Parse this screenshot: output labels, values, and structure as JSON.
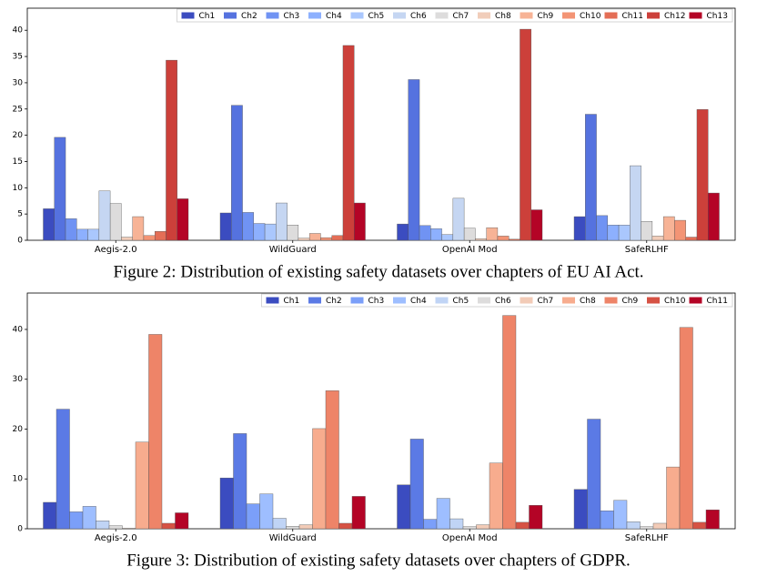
{
  "chart_data": [
    {
      "type": "bar",
      "caption": "Figure 2:  Distribution of existing safety datasets over chapters of EU AI Act.",
      "categories": [
        "Aegis-2.0",
        "WildGuard",
        "OpenAI Mod",
        "SafeRLHF"
      ],
      "ylim": [
        0,
        44.2
      ],
      "yticks": [
        0,
        5,
        10,
        15,
        20,
        25,
        30,
        35,
        40
      ],
      "grid": false,
      "legend": "top-right",
      "series": [
        {
          "name": "Ch1",
          "color": "#3b4cc0",
          "values": [
            6.0,
            5.2,
            3.1,
            4.5
          ]
        },
        {
          "name": "Ch2",
          "color": "#5572df",
          "values": [
            19.6,
            25.7,
            30.6,
            24.0
          ]
        },
        {
          "name": "Ch3",
          "color": "#7093f3",
          "values": [
            4.1,
            5.3,
            2.8,
            4.7
          ]
        },
        {
          "name": "Ch4",
          "color": "#8db0fe",
          "values": [
            2.1,
            3.2,
            2.2,
            2.9
          ]
        },
        {
          "name": "Ch5",
          "color": "#aac7fd",
          "values": [
            2.1,
            3.1,
            1.1,
            2.9
          ]
        },
        {
          "name": "Ch6",
          "color": "#c5d6f2",
          "values": [
            9.4,
            7.1,
            8.0,
            14.2
          ]
        },
        {
          "name": "Ch7",
          "color": "#dddcdc",
          "values": [
            7.0,
            2.9,
            2.3,
            3.6
          ]
        },
        {
          "name": "Ch8",
          "color": "#f1cdba",
          "values": [
            0.6,
            0.4,
            0.3,
            0.8
          ]
        },
        {
          "name": "Ch9",
          "color": "#f7b396",
          "values": [
            4.5,
            1.3,
            2.4,
            4.5
          ]
        },
        {
          "name": "Ch10",
          "color": "#f39475",
          "values": [
            0.9,
            0.5,
            0.8,
            3.8
          ]
        },
        {
          "name": "Ch11",
          "color": "#e46e56",
          "values": [
            1.7,
            0.9,
            0.2,
            0.6
          ]
        },
        {
          "name": "Ch12",
          "color": "#cc403a",
          "values": [
            34.3,
            37.1,
            40.2,
            24.9
          ]
        },
        {
          "name": "Ch13",
          "color": "#b40426",
          "values": [
            7.9,
            7.1,
            5.8,
            9.0
          ]
        }
      ]
    },
    {
      "type": "bar",
      "caption": "Figure 3:  Distribution of existing safety datasets over chapters of GDPR.",
      "categories": [
        "Aegis-2.0",
        "WildGuard",
        "OpenAI Mod",
        "SafeRLHF"
      ],
      "ylim": [
        0,
        47.3
      ],
      "yticks": [
        0,
        10,
        20,
        30,
        40
      ],
      "grid": false,
      "legend": "top-right",
      "series": [
        {
          "name": "Ch1",
          "color": "#3b4cc0",
          "values": [
            5.3,
            10.2,
            8.8,
            7.9
          ]
        },
        {
          "name": "Ch2",
          "color": "#5b7ae5",
          "values": [
            24.0,
            19.1,
            18.0,
            22.0
          ]
        },
        {
          "name": "Ch3",
          "color": "#7b9ff9",
          "values": [
            3.4,
            5.0,
            1.9,
            3.6
          ]
        },
        {
          "name": "Ch4",
          "color": "#9ebeff",
          "values": [
            4.5,
            7.0,
            6.1,
            5.7
          ]
        },
        {
          "name": "Ch5",
          "color": "#c0d4f5",
          "values": [
            1.6,
            2.1,
            2.0,
            1.4
          ]
        },
        {
          "name": "Ch6",
          "color": "#dddcdc",
          "values": [
            0.6,
            0.5,
            0.4,
            0.4
          ]
        },
        {
          "name": "Ch7",
          "color": "#f2cbb7",
          "values": [
            0.1,
            0.8,
            0.8,
            1.1
          ]
        },
        {
          "name": "Ch8",
          "color": "#f7ac8e",
          "values": [
            17.4,
            20.1,
            13.2,
            12.4
          ]
        },
        {
          "name": "Ch9",
          "color": "#ee8468",
          "values": [
            39.0,
            27.7,
            42.8,
            40.4
          ]
        },
        {
          "name": "Ch10",
          "color": "#d65244",
          "values": [
            1.1,
            1.1,
            1.3,
            1.3
          ]
        },
        {
          "name": "Ch11",
          "color": "#b40426",
          "values": [
            3.2,
            6.5,
            4.7,
            3.8
          ]
        }
      ]
    }
  ]
}
